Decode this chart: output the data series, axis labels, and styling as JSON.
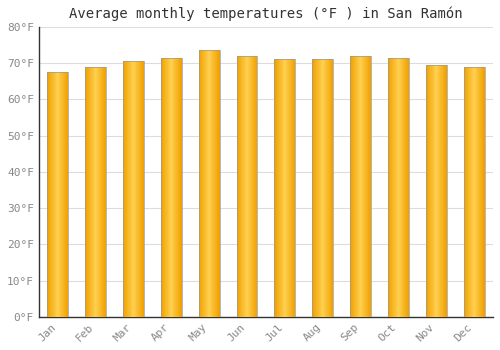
{
  "title": "Average monthly temperatures (°F ) in San Ramón",
  "months": [
    "Jan",
    "Feb",
    "Mar",
    "Apr",
    "May",
    "Jun",
    "Jul",
    "Aug",
    "Sep",
    "Oct",
    "Nov",
    "Dec"
  ],
  "values": [
    67.5,
    69.0,
    70.5,
    71.5,
    73.5,
    72.0,
    71.0,
    71.0,
    72.0,
    71.5,
    69.5,
    69.0
  ],
  "bar_color_center": "#FFD050",
  "bar_color_edge": "#F0A000",
  "bar_edge_color": "#999999",
  "background_color": "#FFFFFF",
  "grid_color": "#DDDDDD",
  "ylim": [
    0,
    80
  ],
  "yticks": [
    0,
    10,
    20,
    30,
    40,
    50,
    60,
    70,
    80
  ],
  "ytick_labels": [
    "0°F",
    "10°F",
    "20°F",
    "30°F",
    "40°F",
    "50°F",
    "60°F",
    "70°F",
    "80°F"
  ],
  "title_fontsize": 10,
  "tick_fontsize": 8,
  "font_family": "monospace",
  "bar_width": 0.55
}
